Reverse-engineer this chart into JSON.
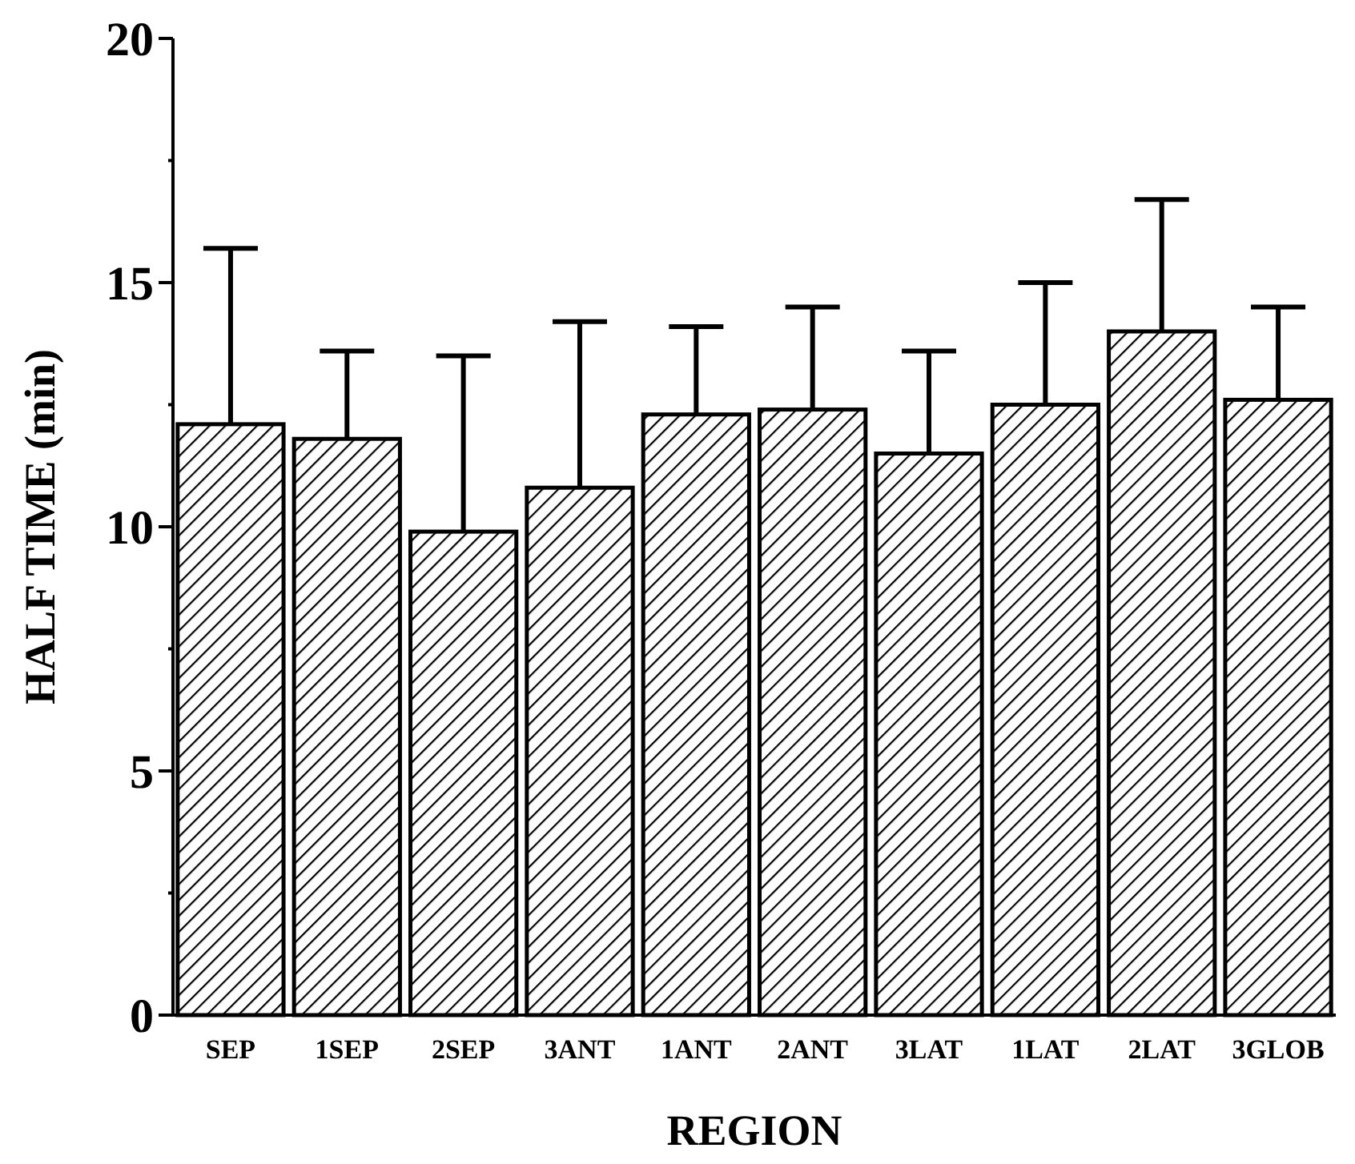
{
  "chart_data": {
    "type": "bar",
    "xlabel": "REGION",
    "ylabel": "HALF TIME (min)",
    "categories": [
      "SEP",
      "1SEP",
      "2SEP",
      "3ANT",
      "1ANT",
      "2ANT",
      "3LAT",
      "1LAT",
      "2LAT",
      "3GLOB"
    ],
    "values": [
      12.1,
      11.8,
      9.9,
      10.8,
      12.3,
      12.4,
      11.5,
      12.5,
      14.0,
      12.6
    ],
    "errors": [
      [
        12.1,
        15.7
      ],
      [
        11.8,
        13.6
      ],
      [
        9.9,
        13.5
      ],
      [
        10.8,
        14.2
      ],
      [
        12.3,
        14.1
      ],
      [
        12.4,
        14.5
      ],
      [
        11.5,
        13.6
      ],
      [
        12.5,
        15.0
      ],
      [
        14.0,
        16.7
      ],
      [
        12.6,
        14.5
      ]
    ],
    "color": "#000000",
    "ylim": [
      0,
      20
    ],
    "yticks": [
      0,
      {
        "value": 2.5,
        "label": null
      },
      5,
      {
        "value": 7.5,
        "label": null
      },
      10,
      {
        "value": 12.5,
        "label": null
      },
      15,
      {
        "value": 17.5,
        "label": null
      },
      20
    ],
    "grid": false
  }
}
